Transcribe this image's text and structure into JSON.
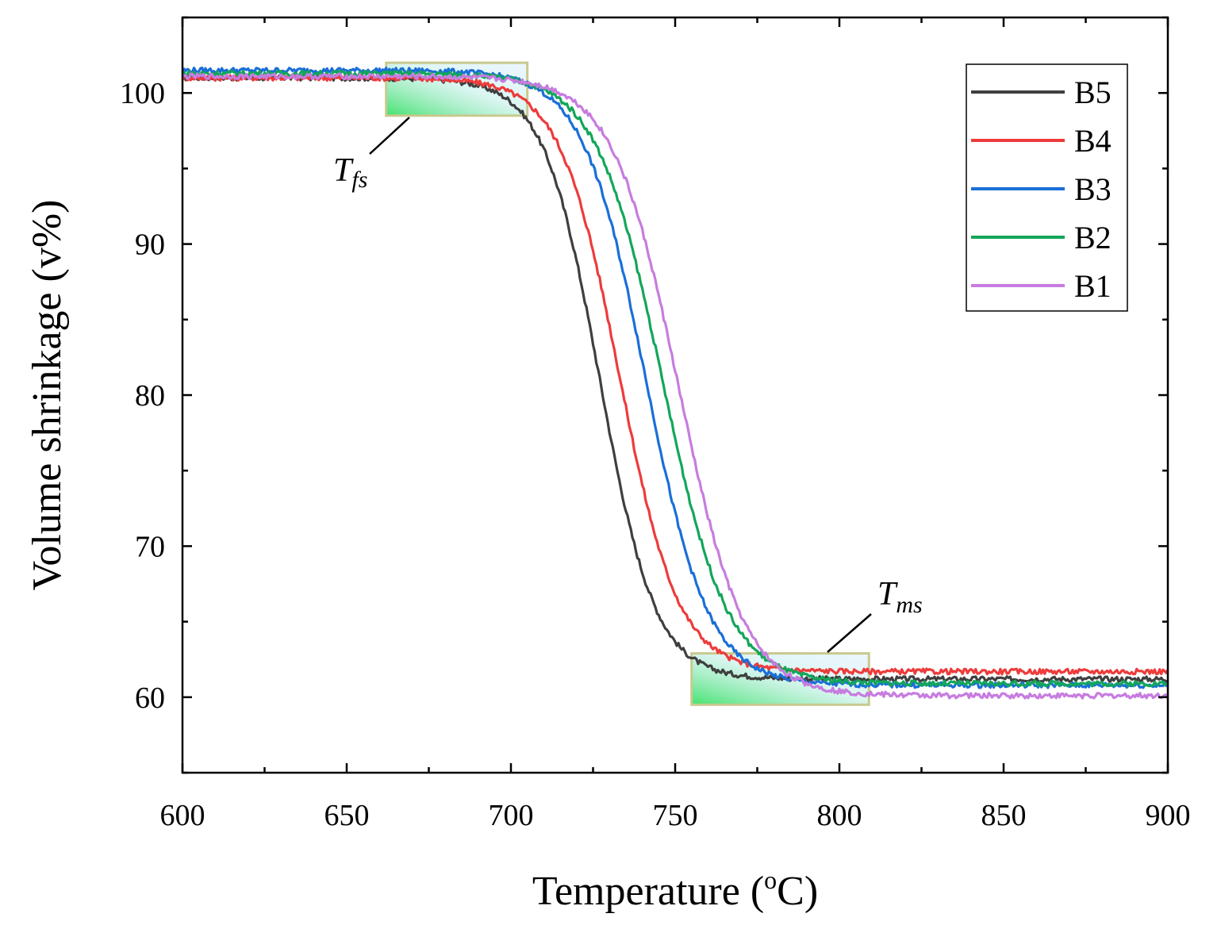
{
  "chart_data": {
    "type": "line",
    "xlabel": "Temperature (",
    "xlabel_sup": "o",
    "xlabel_tail": "C)",
    "ylabel": "Volume shrinkage (v%)",
    "xlim": [
      600,
      900
    ],
    "ylim": [
      55,
      105
    ],
    "xticks": [
      600,
      650,
      700,
      750,
      800,
      850,
      900
    ],
    "yticks": [
      60,
      70,
      80,
      90,
      100
    ],
    "legend_position": "top-right",
    "series": [
      {
        "name": "B5",
        "color": "#3f3f3f",
        "start": 101.0,
        "end": 61.2,
        "mid": 727,
        "width": 8.5
      },
      {
        "name": "B4",
        "color": "#ee3b3b",
        "start": 101.0,
        "end": 61.7,
        "mid": 733,
        "width": 9.0
      },
      {
        "name": "B3",
        "color": "#1a6fd8",
        "start": 101.5,
        "end": 60.8,
        "mid": 741,
        "width": 9.5
      },
      {
        "name": "B2",
        "color": "#13a65a",
        "start": 101.3,
        "end": 60.9,
        "mid": 746,
        "width": 10.0
      },
      {
        "name": "B1",
        "color": "#c77ce0",
        "start": 101.1,
        "end": 60.1,
        "mid": 751,
        "width": 10.0
      }
    ],
    "annotations": [
      {
        "label": "T",
        "sub": "fs",
        "region_x": [
          662,
          705
        ],
        "region_y": [
          98.5,
          102
        ]
      },
      {
        "label": "T",
        "sub": "ms",
        "region_x": [
          755,
          809
        ],
        "region_y": [
          59.5,
          62.9
        ]
      }
    ]
  }
}
